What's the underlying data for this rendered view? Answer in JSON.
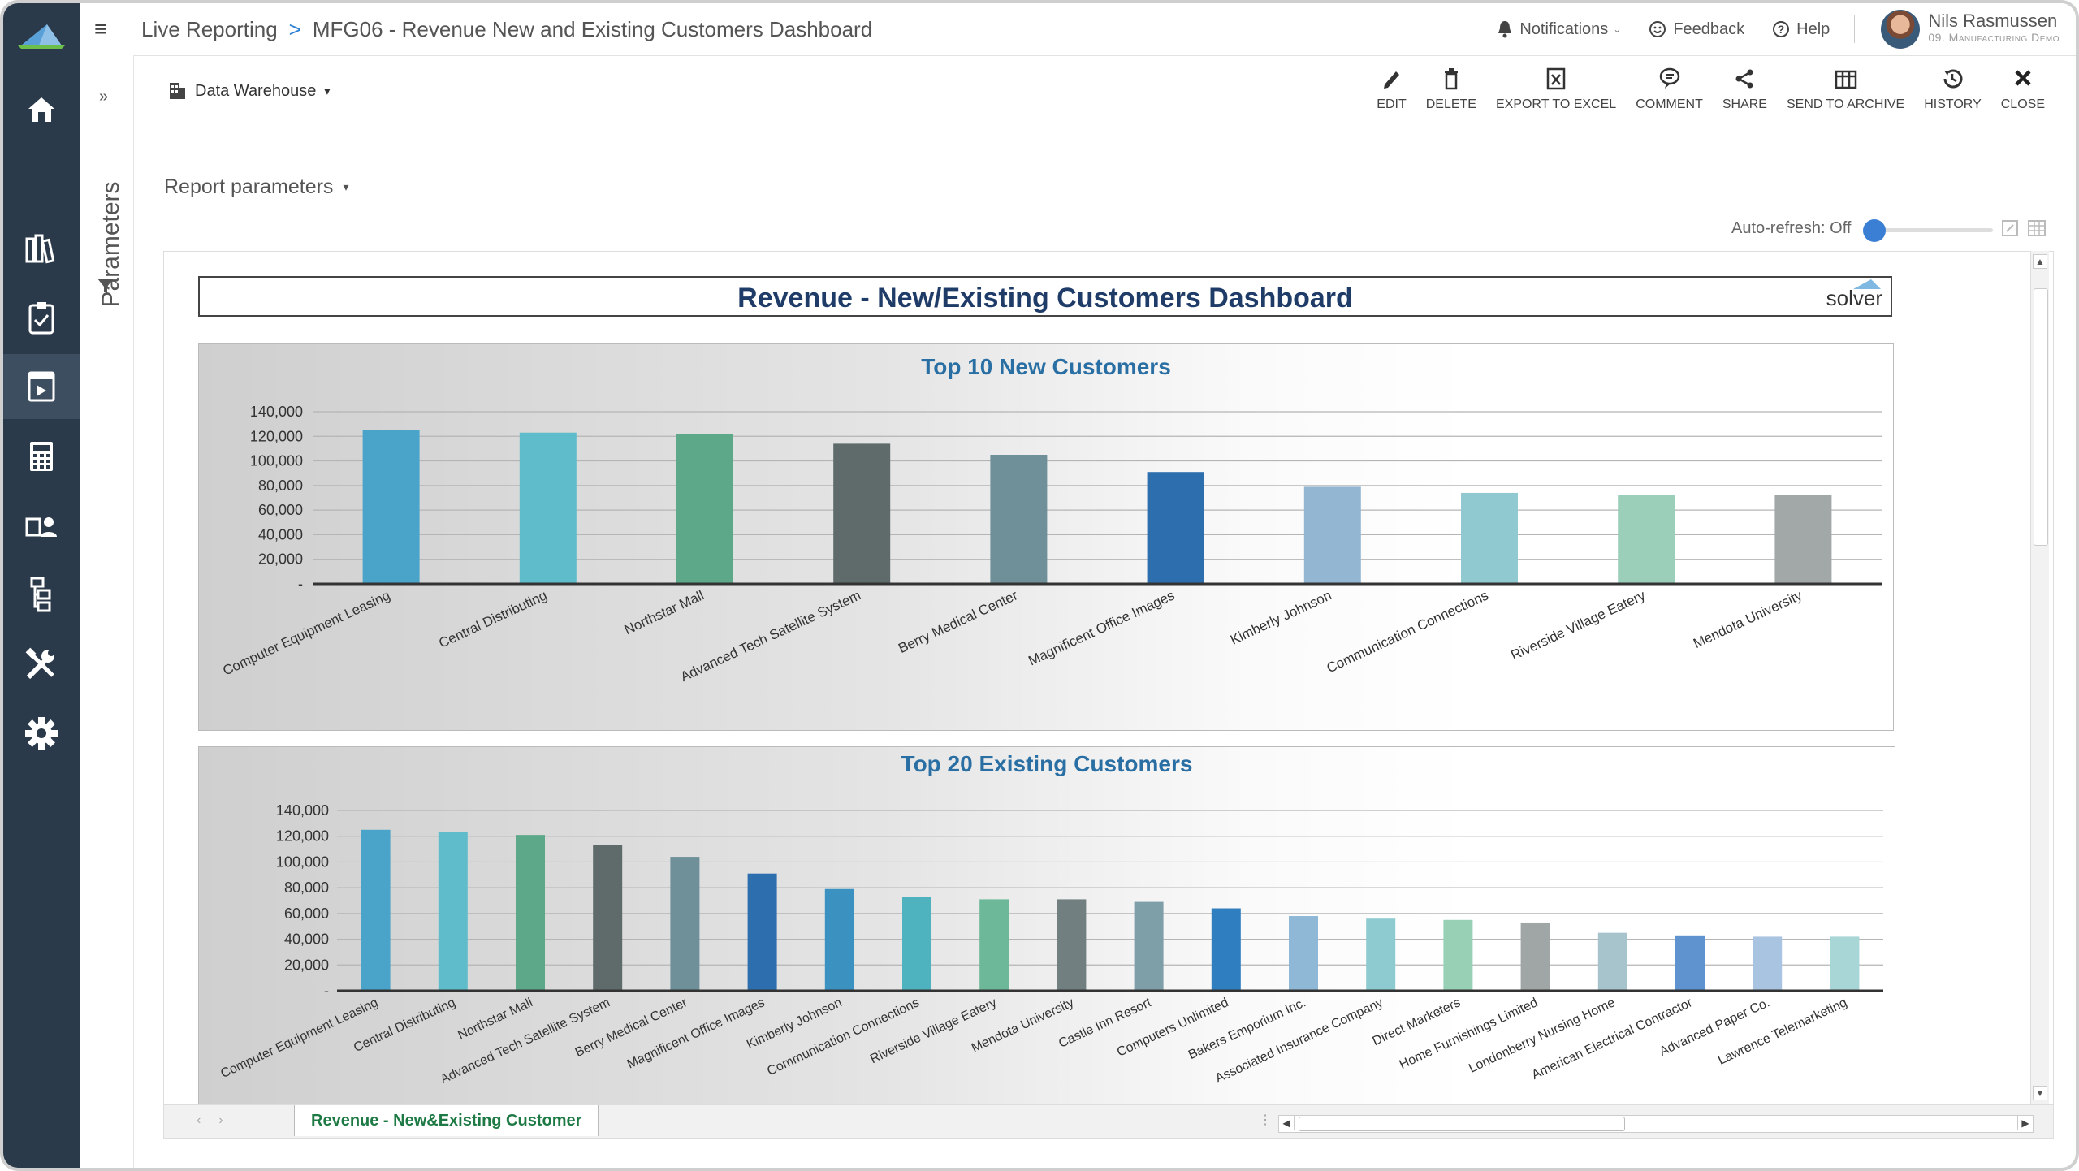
{
  "breadcrumb": {
    "root": "Live Reporting",
    "separator": ">",
    "current": "MFG06 - Revenue New and Existing Customers Dashboard"
  },
  "topbar": {
    "notifications": "Notifications",
    "feedback": "Feedback",
    "help": "Help",
    "user_name": "Nils Rasmussen",
    "user_role": "09. Manufacturing Demo"
  },
  "sidebar": {
    "items": [
      "home-icon",
      "library-icon",
      "clipboard-icon",
      "report-icon",
      "calculator-icon",
      "users-icon",
      "hierarchy-icon",
      "tools-icon",
      "gear-icon"
    ]
  },
  "params": {
    "label": "Parameters"
  },
  "toolbar": {
    "datasource": "Data Warehouse",
    "actions": [
      "EDIT",
      "DELETE",
      "EXPORT TO EXCEL",
      "COMMENT",
      "SHARE",
      "SEND TO ARCHIVE",
      "HISTORY",
      "CLOSE"
    ]
  },
  "report_parameters": "Report parameters",
  "autorefresh": "Auto-refresh: Off",
  "dashboard": {
    "title": "Revenue - New/Existing Customers Dashboard",
    "brand": "solver"
  },
  "chart_data": [
    {
      "type": "bar",
      "title": "Top 10 New Customers",
      "ylim": [
        0,
        140000
      ],
      "yticks": [
        "140,000",
        "120,000",
        "100,000",
        "80,000",
        "60,000",
        "40,000",
        "20,000",
        "-"
      ],
      "categories": [
        "Computer Equipment Leasing",
        "Central Distributing",
        "Northstar Mall",
        "Advanced Tech Satellite System",
        "Berry Medical Center",
        "Magnificent Office Images",
        "Kimberly Johnson",
        "Communication Connections",
        "Riverside Village Eatery",
        "Mendota University"
      ],
      "values": [
        125000,
        123000,
        122000,
        114000,
        105000,
        91000,
        79000,
        74000,
        72000,
        72000
      ],
      "colors": [
        "#4aa3c8",
        "#5fbccb",
        "#5ea88a",
        "#5f6b6b",
        "#6f9099",
        "#2d6fae",
        "#93b7d2",
        "#90c9cf",
        "#9ccfba",
        "#a2a8a8"
      ],
      "grid": true
    },
    {
      "type": "bar",
      "title": "Top 20 Existing Customers",
      "ylim": [
        0,
        140000
      ],
      "yticks": [
        "140,000",
        "120,000",
        "100,000",
        "80,000",
        "60,000",
        "40,000",
        "20,000",
        "-"
      ],
      "categories": [
        "Computer Equipment Leasing",
        "Central Distributing",
        "Northstar Mall",
        "Advanced Tech Satellite System",
        "Berry Medical Center",
        "Magnificent Office Images",
        "Kimberly Johnson",
        "Communication Connections",
        "Riverside Village Eatery",
        "Mendota University",
        "Castle Inn Resort",
        "Computers Unlimited",
        "Bakers Emporium Inc.",
        "Associated Insurance Company",
        "Direct Marketers",
        "Home Furnishings Limited",
        "Londonberry Nursing Home",
        "American Electrical Contractor",
        "Advanced Paper Co.",
        "Lawrence Telemarketing"
      ],
      "values": [
        125000,
        123000,
        121000,
        113000,
        104000,
        91000,
        79000,
        73000,
        71000,
        71000,
        69000,
        64000,
        58000,
        56000,
        55000,
        53000,
        45000,
        43000,
        42000,
        42000
      ],
      "colors": [
        "#4aa3c8",
        "#5fbccb",
        "#5ea88a",
        "#5f6b6b",
        "#6f9099",
        "#2d6fae",
        "#3b91c0",
        "#4fb3bf",
        "#6cb898",
        "#727f80",
        "#7e9ea8",
        "#2f7fc0",
        "#8fb8d6",
        "#8ecbd0",
        "#98d0b6",
        "#a0a5a5",
        "#a7c3cc",
        "#5e93cf",
        "#a9c4e0",
        "#a8d6d6"
      ],
      "grid": true
    }
  ],
  "sheet_tab": "Revenue - New&Existing Customer"
}
